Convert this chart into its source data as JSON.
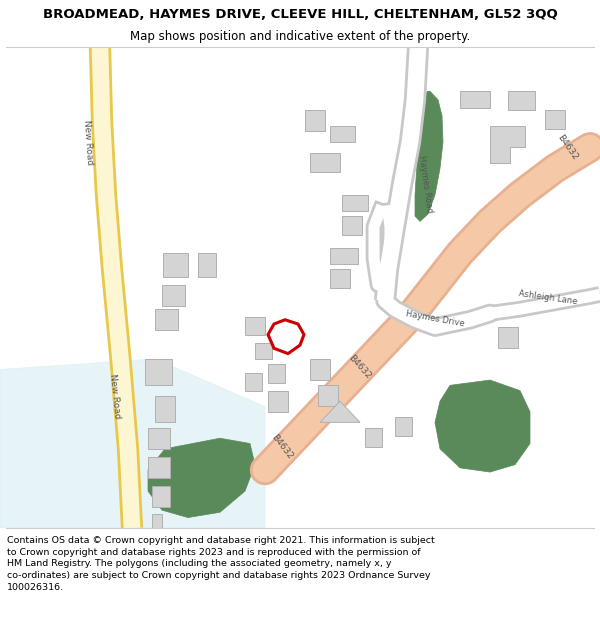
{
  "title": "BROADMEAD, HAYMES DRIVE, CLEEVE HILL, CHELTENHAM, GL52 3QQ",
  "subtitle": "Map shows position and indicative extent of the property.",
  "footer": "Contains OS data © Crown copyright and database right 2021. This information is subject to Crown copyright and database rights 2023 and is reproduced with the permission of HM Land Registry. The polygons (including the associated geometry, namely x, y co-ordinates) are subject to Crown copyright and database rights 2023 Ordnance Survey 100026316.",
  "bg_color": "#ffffff",
  "map_bg": "#f7f5f0",
  "road_yellow_fill": "#fdf6d3",
  "road_yellow_border": "#e8c84a",
  "road_peach_fill": "#f5c9a8",
  "road_peach_border": "#e8b090",
  "road_white_fill": "#ffffff",
  "road_white_border": "#c8c8c8",
  "green_fill": "#5a8a5a",
  "building_fill": "#d4d4d4",
  "building_stroke": "#b0b0b0",
  "light_blue": "#c8e8f0",
  "plot_stroke": "#cc0000",
  "figsize": [
    6.0,
    6.25
  ],
  "dpi": 100,
  "map_xlim": [
    0,
    600
  ],
  "map_ylim": [
    0,
    455
  ],
  "title_fontsize": 9.5,
  "subtitle_fontsize": 8.5,
  "footer_fontsize": 6.8,
  "road_label_fontsize": 6.5,
  "road_label_color": "#555555"
}
